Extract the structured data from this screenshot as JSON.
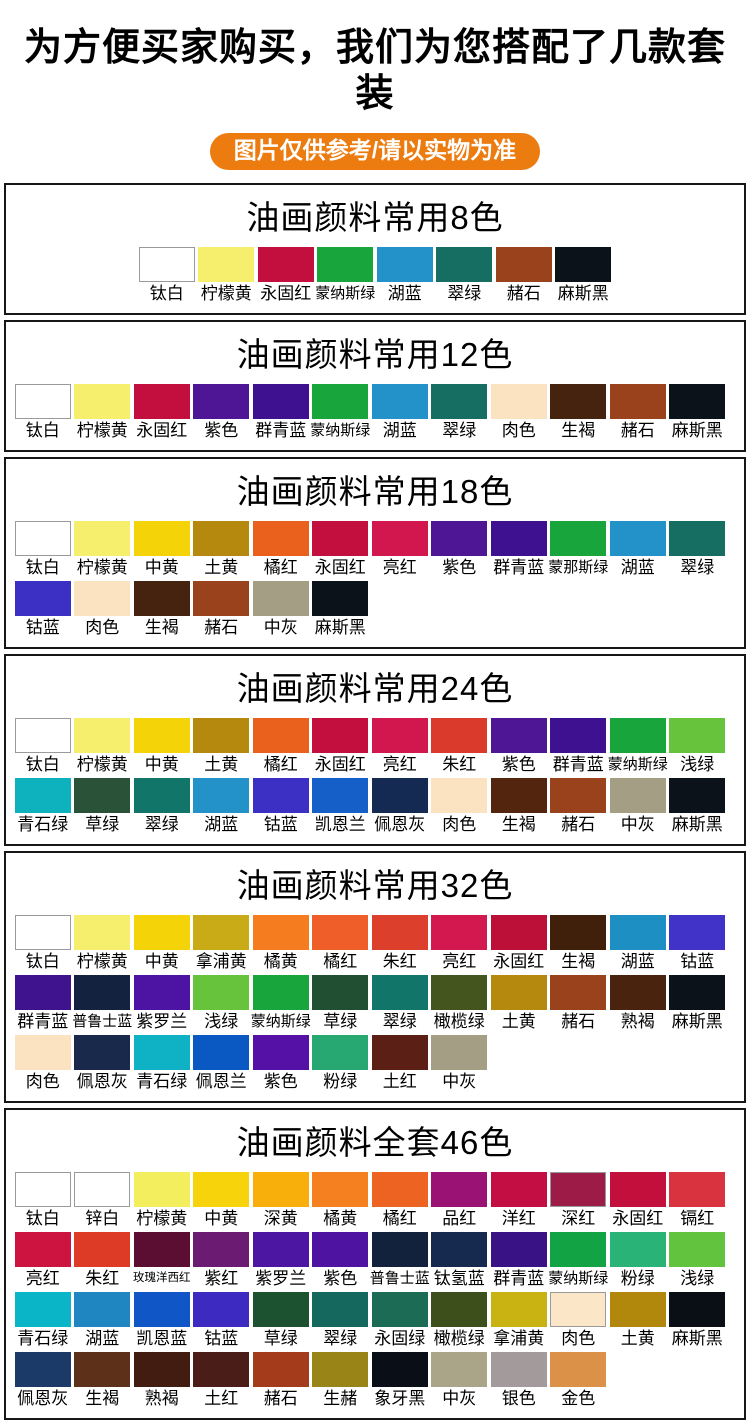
{
  "header": {
    "title": "为方便买家购买，我们为您搭配了几款套装",
    "badge": "图片仅供参考/请以实物为准",
    "badge_color": "#ec7c10"
  },
  "sections": [
    {
      "title": "油画颜料常用8色",
      "centered": true,
      "rows": [
        [
          {
            "label": "钛白",
            "color": "#ffffff",
            "border": true
          },
          {
            "label": "柠檬黄",
            "color": "#f6ef6d"
          },
          {
            "label": "永固红",
            "color": "#c30f3e"
          },
          {
            "label": "蒙纳斯绿",
            "color": "#18a53c"
          },
          {
            "label": "湖蓝",
            "color": "#2392c8"
          },
          {
            "label": "翠绿",
            "color": "#166d62"
          },
          {
            "label": "赭石",
            "color": "#9a421b"
          },
          {
            "label": "麻斯黑",
            "color": "#0c1219"
          }
        ]
      ]
    },
    {
      "title": "油画颜料常用12色",
      "centered": false,
      "rows": [
        [
          {
            "label": "钛白",
            "color": "#ffffff",
            "border": true
          },
          {
            "label": "柠檬黄",
            "color": "#f6ef6d"
          },
          {
            "label": "永固红",
            "color": "#c30f3e"
          },
          {
            "label": "紫色",
            "color": "#4e1595"
          },
          {
            "label": "群青蓝",
            "color": "#3e1190"
          },
          {
            "label": "蒙纳斯绿",
            "color": "#18a53c"
          },
          {
            "label": "湖蓝",
            "color": "#2392c8"
          },
          {
            "label": "翠绿",
            "color": "#166d62"
          },
          {
            "label": "肉色",
            "color": "#fbe3c2"
          },
          {
            "label": "生褐",
            "color": "#45230e"
          },
          {
            "label": "赭石",
            "color": "#9a421b"
          },
          {
            "label": "麻斯黑",
            "color": "#0c1219"
          }
        ]
      ]
    },
    {
      "title": "油画颜料常用18色",
      "centered": false,
      "rows": [
        [
          {
            "label": "钛白",
            "color": "#ffffff",
            "border": true
          },
          {
            "label": "柠檬黄",
            "color": "#f6ef6d"
          },
          {
            "label": "中黄",
            "color": "#f4d308"
          },
          {
            "label": "土黄",
            "color": "#b5880e"
          },
          {
            "label": "橘红",
            "color": "#e9611d"
          },
          {
            "label": "永固红",
            "color": "#c30f3e"
          },
          {
            "label": "亮红",
            "color": "#d2164e"
          },
          {
            "label": "紫色",
            "color": "#4e1595"
          },
          {
            "label": "群青蓝",
            "color": "#3e1190"
          },
          {
            "label": "蒙那斯绿",
            "color": "#18a53c"
          },
          {
            "label": "湖蓝",
            "color": "#2392c8"
          },
          {
            "label": "翠绿",
            "color": "#166d62"
          }
        ],
        [
          {
            "label": "钴蓝",
            "color": "#3c2fc4"
          },
          {
            "label": "肉色",
            "color": "#fbe3c2"
          },
          {
            "label": "生褐",
            "color": "#45230e"
          },
          {
            "label": "赭石",
            "color": "#9a421b"
          },
          {
            "label": "中灰",
            "color": "#a49e85"
          },
          {
            "label": "麻斯黑",
            "color": "#0c1219"
          }
        ]
      ]
    },
    {
      "title": "油画颜料常用24色",
      "centered": false,
      "rows": [
        [
          {
            "label": "钛白",
            "color": "#ffffff",
            "border": true
          },
          {
            "label": "柠檬黄",
            "color": "#f6ef6d"
          },
          {
            "label": "中黄",
            "color": "#f4d308"
          },
          {
            "label": "土黄",
            "color": "#b5880e"
          },
          {
            "label": "橘红",
            "color": "#e9611d"
          },
          {
            "label": "永固红",
            "color": "#c30f3e"
          },
          {
            "label": "亮红",
            "color": "#d2164e"
          },
          {
            "label": "朱红",
            "color": "#d93a2b"
          },
          {
            "label": "紫色",
            "color": "#4e1595"
          },
          {
            "label": "群青蓝",
            "color": "#3e1190"
          },
          {
            "label": "蒙纳斯绿",
            "color": "#18a53c"
          },
          {
            "label": "浅绿",
            "color": "#67c33c"
          }
        ],
        [
          {
            "label": "青石绿",
            "color": "#0eb2bf"
          },
          {
            "label": "草绿",
            "color": "#2a5239"
          },
          {
            "label": "翠绿",
            "color": "#12756a"
          },
          {
            "label": "湖蓝",
            "color": "#2392c8"
          },
          {
            "label": "钴蓝",
            "color": "#3c2fc4"
          },
          {
            "label": "凯恩兰",
            "color": "#155fc9"
          },
          {
            "label": "佩恩灰",
            "color": "#152a52"
          },
          {
            "label": "肉色",
            "color": "#fbe3c2"
          },
          {
            "label": "生褐",
            "color": "#53250f"
          },
          {
            "label": "赭石",
            "color": "#9a421b"
          },
          {
            "label": "中灰",
            "color": "#a49e85"
          },
          {
            "label": "麻斯黑",
            "color": "#0c1219"
          }
        ]
      ]
    },
    {
      "title": "油画颜料常用32色",
      "centered": false,
      "rows": [
        [
          {
            "label": "钛白",
            "color": "#ffffff",
            "border": true
          },
          {
            "label": "柠檬黄",
            "color": "#f6ef6d"
          },
          {
            "label": "中黄",
            "color": "#f4d308"
          },
          {
            "label": "拿浦黄",
            "color": "#c8ab17"
          },
          {
            "label": "橘黄",
            "color": "#f57d20"
          },
          {
            "label": "橘红",
            "color": "#ef5d28"
          },
          {
            "label": "朱红",
            "color": "#dd3f2d"
          },
          {
            "label": "亮红",
            "color": "#d31850"
          },
          {
            "label": "永固红",
            "color": "#bd1038"
          },
          {
            "label": "生褐",
            "color": "#41200b"
          },
          {
            "label": "湖蓝",
            "color": "#1e8fc2"
          },
          {
            "label": "钴蓝",
            "color": "#4132c8"
          }
        ],
        [
          {
            "label": "群青蓝",
            "color": "#3f128e"
          },
          {
            "label": "普鲁士蓝",
            "color": "#13223f"
          },
          {
            "label": "紫罗兰",
            "color": "#4d13a2"
          },
          {
            "label": "浅绿",
            "color": "#67c33c"
          },
          {
            "label": "蒙纳斯绿",
            "color": "#17a53c"
          },
          {
            "label": "草绿",
            "color": "#214f32"
          },
          {
            "label": "翠绿",
            "color": "#12756a"
          },
          {
            "label": "橄榄绿",
            "color": "#44561e"
          },
          {
            "label": "土黄",
            "color": "#b5880e"
          },
          {
            "label": "赭石",
            "color": "#9a421b"
          },
          {
            "label": "熟褐",
            "color": "#4a230f"
          },
          {
            "label": "麻斯黑",
            "color": "#0c1219"
          }
        ],
        [
          {
            "label": "肉色",
            "color": "#fbe3c2"
          },
          {
            "label": "佩恩灰",
            "color": "#19294c"
          },
          {
            "label": "青石绿",
            "color": "#0eb2c4"
          },
          {
            "label": "佩恩兰",
            "color": "#0a58c2"
          },
          {
            "label": "紫色",
            "color": "#5510a5"
          },
          {
            "label": "粉绿",
            "color": "#27a873"
          },
          {
            "label": "土红",
            "color": "#5c1f16"
          },
          {
            "label": "中灰",
            "color": "#a49e85"
          }
        ]
      ]
    },
    {
      "title": "油画颜料全套46色",
      "centered": false,
      "rows": [
        [
          {
            "label": "钛白",
            "color": "#ffffff",
            "border": true
          },
          {
            "label": "锌白",
            "color": "#ffffff",
            "border": true
          },
          {
            "label": "柠檬黄",
            "color": "#f3ee5e"
          },
          {
            "label": "中黄",
            "color": "#f6d30a"
          },
          {
            "label": "深黄",
            "color": "#f8af0c"
          },
          {
            "label": "橘黄",
            "color": "#f5801f"
          },
          {
            "label": "橘红",
            "color": "#ed6322"
          },
          {
            "label": "品红",
            "color": "#9a1273"
          },
          {
            "label": "洋红",
            "color": "#c20e42"
          },
          {
            "label": "深红",
            "color": "#9c1b47",
            "border": true
          },
          {
            "label": "永固红",
            "color": "#c30f3c"
          },
          {
            "label": "镉红",
            "color": "#d8333f"
          }
        ],
        [
          {
            "label": "亮红",
            "color": "#cd1340"
          },
          {
            "label": "朱红",
            "color": "#de3b27"
          },
          {
            "label": "玫瑰洋西红",
            "color": "#5b0e32"
          },
          {
            "label": "紫红",
            "color": "#6b1c72"
          },
          {
            "label": "紫罗兰",
            "color": "#4c16a3"
          },
          {
            "label": "紫色",
            "color": "#4e13a0"
          },
          {
            "label": "普鲁士蓝",
            "color": "#12223d"
          },
          {
            "label": "钛氢蓝",
            "color": "#16294f"
          },
          {
            "label": "群青蓝",
            "color": "#391385"
          },
          {
            "label": "蒙纳斯绿",
            "color": "#12a444"
          },
          {
            "label": "粉绿",
            "color": "#2ab377"
          },
          {
            "label": "浅绿",
            "color": "#61c33e"
          }
        ],
        [
          {
            "label": "青石绿",
            "color": "#0bb5c8"
          },
          {
            "label": "湖蓝",
            "color": "#2086c2"
          },
          {
            "label": "凯恩蓝",
            "color": "#1156c7"
          },
          {
            "label": "钴蓝",
            "color": "#3d2ac0"
          },
          {
            "label": "草绿",
            "color": "#1d5230"
          },
          {
            "label": "翠绿",
            "color": "#14685e"
          },
          {
            "label": "永固绿",
            "color": "#1b6b55"
          },
          {
            "label": "橄榄绿",
            "color": "#3d501c"
          },
          {
            "label": "拿浦黄",
            "color": "#c8b313"
          },
          {
            "label": "肉色",
            "color": "#fce6c8",
            "border": true
          },
          {
            "label": "土黄",
            "color": "#b1870c"
          },
          {
            "label": "麻斯黑",
            "color": "#0a0f16"
          }
        ],
        [
          {
            "label": "佩恩灰",
            "color": "#1c3a68"
          },
          {
            "label": "生褐",
            "color": "#5c3019"
          },
          {
            "label": "熟褐",
            "color": "#421c10"
          },
          {
            "label": "土红",
            "color": "#4b1d19"
          },
          {
            "label": "赭石",
            "color": "#a43c1c"
          },
          {
            "label": "生赭",
            "color": "#998417"
          },
          {
            "label": "象牙黑",
            "color": "#0a0e17"
          },
          {
            "label": "中灰",
            "color": "#aaa489"
          },
          {
            "label": "银色",
            "color": "#a39b9b"
          },
          {
            "label": "金色",
            "color": "#db9147"
          }
        ]
      ]
    }
  ]
}
